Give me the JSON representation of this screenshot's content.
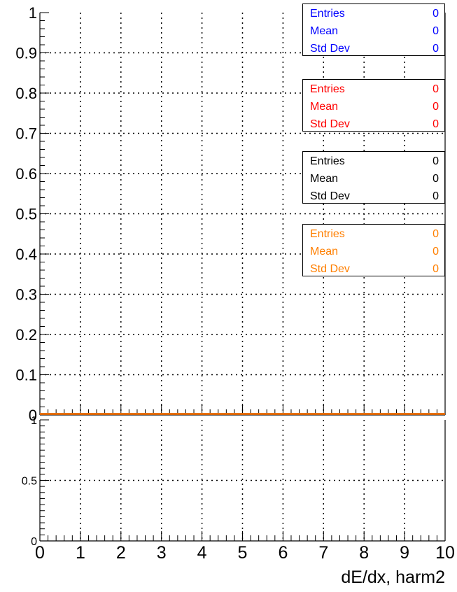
{
  "chart_data": [
    {
      "type": "line",
      "panel": "top",
      "title": "",
      "xlabel": "",
      "ylabel": "",
      "xlim": [
        0,
        10
      ],
      "ylim": [
        0,
        1
      ],
      "grid": true,
      "y_ticks": [
        "0",
        "0.1",
        "0.2",
        "0.3",
        "0.4",
        "0.5",
        "0.6",
        "0.7",
        "0.8",
        "0.9",
        "1"
      ],
      "series": [
        {
          "color": "#0000ff",
          "x": [
            0,
            10
          ],
          "y": [
            0,
            0
          ]
        },
        {
          "color": "#ff0000",
          "x": [
            0,
            10
          ],
          "y": [
            0,
            0
          ]
        },
        {
          "color": "#000000",
          "x": [
            0,
            10
          ],
          "y": [
            0,
            0
          ]
        },
        {
          "color": "#ff7f00",
          "x": [
            0,
            10
          ],
          "y": [
            0,
            0
          ]
        }
      ],
      "stats_boxes": [
        {
          "color": "#0000ff",
          "rows": [
            {
              "label": "Entries",
              "value": "0"
            },
            {
              "label": "Mean",
              "value": "0"
            },
            {
              "label": "Std Dev",
              "value": "0"
            }
          ]
        },
        {
          "color": "#ff0000",
          "rows": [
            {
              "label": "Entries",
              "value": "0"
            },
            {
              "label": "Mean",
              "value": "0"
            },
            {
              "label": "Std Dev",
              "value": "0"
            }
          ]
        },
        {
          "color": "#000000",
          "rows": [
            {
              "label": "Entries",
              "value": "0"
            },
            {
              "label": "Mean",
              "value": "0"
            },
            {
              "label": "Std Dev",
              "value": "0"
            }
          ]
        },
        {
          "color": "#ff7f00",
          "rows": [
            {
              "label": "Entries",
              "value": "0"
            },
            {
              "label": "Mean",
              "value": "0"
            },
            {
              "label": "Std Dev",
              "value": "0"
            }
          ]
        }
      ]
    },
    {
      "type": "line",
      "panel": "bottom",
      "title": "",
      "xlabel": "dE/dx, harm2",
      "ylabel": "",
      "xlim": [
        0,
        10
      ],
      "ylim": [
        0,
        1
      ],
      "grid": true,
      "x_ticks": [
        "0",
        "1",
        "2",
        "3",
        "4",
        "5",
        "6",
        "7",
        "8",
        "9",
        "10"
      ],
      "y_ticks": [
        "0",
        "0.5",
        "1"
      ],
      "series": []
    }
  ]
}
